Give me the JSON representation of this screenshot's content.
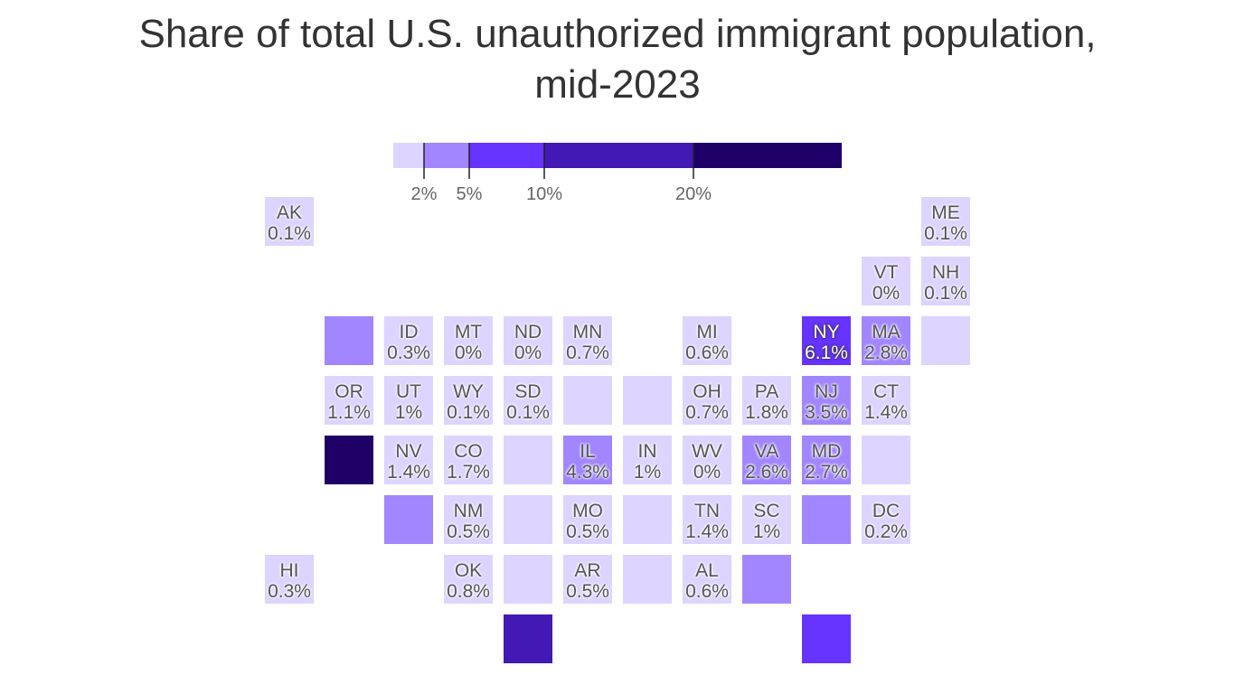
{
  "title_line1": "Share of total U.S. unauthorized immigrant population,",
  "title_line2": "mid-2023",
  "chart_data": {
    "type": "heatmap",
    "subtype": "tile-grid-map",
    "title": "Share of total U.S. unauthorized immigrant population, mid-2023",
    "legend": {
      "thresholds": [
        2,
        5,
        10,
        20
      ],
      "tick_labels": [
        "2%",
        "5%",
        "10%",
        "20%"
      ],
      "colors": [
        "#ddd4ff",
        "#a186ff",
        "#6633ff",
        "#4219b5",
        "#1e0066"
      ],
      "max": 30
    },
    "tiles": [
      {
        "state": "AK",
        "value": "0.1%",
        "bucket": 0,
        "row": 0,
        "col": 0
      },
      {
        "state": "ME",
        "value": "0.1%",
        "bucket": 0,
        "row": 0,
        "col": 11
      },
      {
        "state": "VT",
        "value": "0%",
        "bucket": 0,
        "row": 1,
        "col": 10
      },
      {
        "state": "NH",
        "value": "0.1%",
        "bucket": 0,
        "row": 1,
        "col": 11
      },
      {
        "state": "",
        "value": "",
        "bucket": 1,
        "row": 2,
        "col": 1
      },
      {
        "state": "ID",
        "value": "0.3%",
        "bucket": 0,
        "row": 2,
        "col": 2
      },
      {
        "state": "MT",
        "value": "0%",
        "bucket": 0,
        "row": 2,
        "col": 3
      },
      {
        "state": "ND",
        "value": "0%",
        "bucket": 0,
        "row": 2,
        "col": 4
      },
      {
        "state": "MN",
        "value": "0.7%",
        "bucket": 0,
        "row": 2,
        "col": 5
      },
      {
        "state": "MI",
        "value": "0.6%",
        "bucket": 0,
        "row": 2,
        "col": 7
      },
      {
        "state": "NY",
        "value": "6.1%",
        "bucket": 2,
        "row": 2,
        "col": 9
      },
      {
        "state": "MA",
        "value": "2.8%",
        "bucket": 1,
        "row": 2,
        "col": 10
      },
      {
        "state": "",
        "value": "",
        "bucket": 0,
        "row": 2,
        "col": 11
      },
      {
        "state": "OR",
        "value": "1.1%",
        "bucket": 0,
        "row": 3,
        "col": 1
      },
      {
        "state": "UT",
        "value": "1%",
        "bucket": 0,
        "row": 3,
        "col": 2
      },
      {
        "state": "WY",
        "value": "0.1%",
        "bucket": 0,
        "row": 3,
        "col": 3
      },
      {
        "state": "SD",
        "value": "0.1%",
        "bucket": 0,
        "row": 3,
        "col": 4
      },
      {
        "state": "",
        "value": "",
        "bucket": 0,
        "row": 3,
        "col": 5
      },
      {
        "state": "",
        "value": "",
        "bucket": 0,
        "row": 3,
        "col": 6
      },
      {
        "state": "OH",
        "value": "0.7%",
        "bucket": 0,
        "row": 3,
        "col": 7
      },
      {
        "state": "PA",
        "value": "1.8%",
        "bucket": 0,
        "row": 3,
        "col": 8
      },
      {
        "state": "NJ",
        "value": "3.5%",
        "bucket": 1,
        "row": 3,
        "col": 9
      },
      {
        "state": "CT",
        "value": "1.4%",
        "bucket": 0,
        "row": 3,
        "col": 10
      },
      {
        "state": "",
        "value": "",
        "bucket": 4,
        "row": 4,
        "col": 1
      },
      {
        "state": "NV",
        "value": "1.4%",
        "bucket": 0,
        "row": 4,
        "col": 2
      },
      {
        "state": "CO",
        "value": "1.7%",
        "bucket": 0,
        "row": 4,
        "col": 3
      },
      {
        "state": "",
        "value": "",
        "bucket": 0,
        "row": 4,
        "col": 4
      },
      {
        "state": "IL",
        "value": "4.3%",
        "bucket": 1,
        "row": 4,
        "col": 5
      },
      {
        "state": "IN",
        "value": "1%",
        "bucket": 0,
        "row": 4,
        "col": 6
      },
      {
        "state": "WV",
        "value": "0%",
        "bucket": 0,
        "row": 4,
        "col": 7
      },
      {
        "state": "VA",
        "value": "2.6%",
        "bucket": 1,
        "row": 4,
        "col": 8
      },
      {
        "state": "MD",
        "value": "2.7%",
        "bucket": 1,
        "row": 4,
        "col": 9
      },
      {
        "state": "",
        "value": "",
        "bucket": 0,
        "row": 4,
        "col": 10
      },
      {
        "state": "",
        "value": "",
        "bucket": 1,
        "row": 5,
        "col": 2
      },
      {
        "state": "NM",
        "value": "0.5%",
        "bucket": 0,
        "row": 5,
        "col": 3
      },
      {
        "state": "",
        "value": "",
        "bucket": 0,
        "row": 5,
        "col": 4
      },
      {
        "state": "MO",
        "value": "0.5%",
        "bucket": 0,
        "row": 5,
        "col": 5
      },
      {
        "state": "",
        "value": "",
        "bucket": 0,
        "row": 5,
        "col": 6
      },
      {
        "state": "TN",
        "value": "1.4%",
        "bucket": 0,
        "row": 5,
        "col": 7
      },
      {
        "state": "SC",
        "value": "1%",
        "bucket": 0,
        "row": 5,
        "col": 8
      },
      {
        "state": "",
        "value": "",
        "bucket": 1,
        "row": 5,
        "col": 9
      },
      {
        "state": "DC",
        "value": "0.2%",
        "bucket": 0,
        "row": 5,
        "col": 10
      },
      {
        "state": "HI",
        "value": "0.3%",
        "bucket": 0,
        "row": 6,
        "col": 0
      },
      {
        "state": "OK",
        "value": "0.8%",
        "bucket": 0,
        "row": 6,
        "col": 3
      },
      {
        "state": "",
        "value": "",
        "bucket": 0,
        "row": 6,
        "col": 4
      },
      {
        "state": "AR",
        "value": "0.5%",
        "bucket": 0,
        "row": 6,
        "col": 5
      },
      {
        "state": "",
        "value": "",
        "bucket": 0,
        "row": 6,
        "col": 6
      },
      {
        "state": "AL",
        "value": "0.6%",
        "bucket": 0,
        "row": 6,
        "col": 7
      },
      {
        "state": "",
        "value": "",
        "bucket": 1,
        "row": 6,
        "col": 8
      },
      {
        "state": "",
        "value": "",
        "bucket": 3,
        "row": 7,
        "col": 4
      },
      {
        "state": "",
        "value": "",
        "bucket": 2,
        "row": 7,
        "col": 9
      }
    ]
  }
}
